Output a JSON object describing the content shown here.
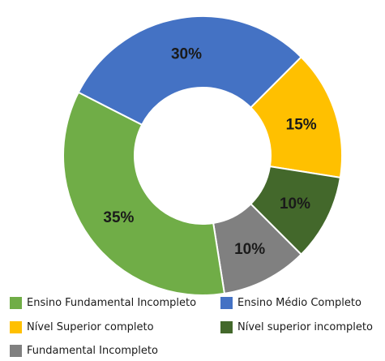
{
  "chart_data": {
    "type": "pie",
    "variant": "donut",
    "title": "",
    "legend_placement": "bottom",
    "slices": [
      {
        "name": "Ensino Médio Completo",
        "value": 30,
        "label": "30%",
        "color": "#4472C4"
      },
      {
        "name": "Nível Superior completo",
        "value": 15,
        "label": "15%",
        "color": "#FFC000"
      },
      {
        "name": "Nível superior incompleto",
        "value": 10,
        "label": "10%",
        "color": "#43682B"
      },
      {
        "name": "Fundamental Incompleto",
        "value": 10,
        "label": "10%",
        "color": "#808080"
      },
      {
        "name": "Ensino Fundamental Incompleto",
        "value": 35,
        "label": "35%",
        "color": "#70AD47"
      }
    ],
    "legend_order": [
      "Ensino Fundamental Incompleto",
      "Ensino Médio Completo",
      "Nível Superior completo",
      "Nível superior incompleto",
      "Fundamental Incompleto"
    ]
  }
}
